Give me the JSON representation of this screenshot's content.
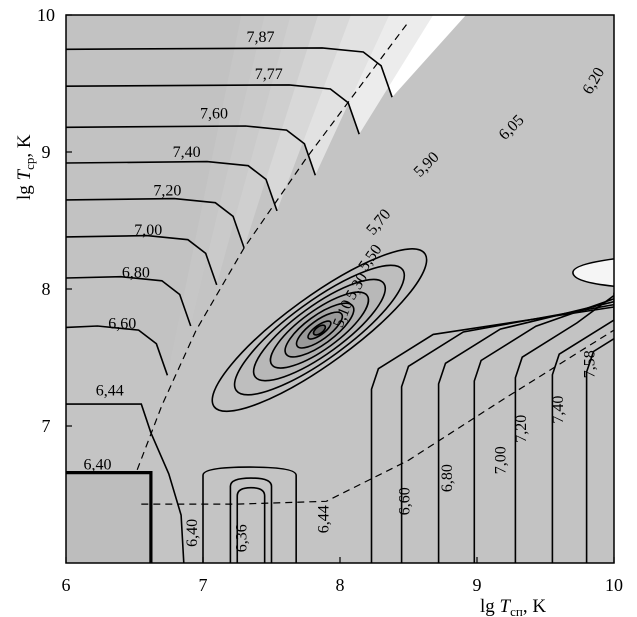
{
  "chart_data": {
    "type": "contour",
    "title": "",
    "xlabel": {
      "prefix": "lg ",
      "var": "T",
      "sub": "сп",
      "suffix": ", K"
    },
    "ylabel": {
      "prefix": "lg ",
      "var": "T",
      "sub": "ср",
      "suffix": ", K"
    },
    "xlim": [
      6,
      10
    ],
    "ylim": [
      6,
      10
    ],
    "xticks": [
      "6",
      "7",
      "8",
      "9",
      "10"
    ],
    "yticks": [
      "7",
      "8",
      "9",
      "10"
    ],
    "grid": false,
    "ridge_contours": [
      5.1,
      5.3,
      5.5,
      5.7,
      5.9,
      6.05,
      6.2
    ],
    "top_left_contours": [
      7.87,
      7.77,
      7.6,
      7.4,
      7.2,
      7.0,
      6.8,
      6.6,
      6.44,
      6.4
    ],
    "right_contours": [
      7.58,
      7.4,
      7.2,
      7.0,
      6.8,
      6.6,
      6.44
    ],
    "bottom_contours": [
      6.4,
      6.36
    ],
    "labels": [
      {
        "text": "7,87",
        "x": 7.42,
        "y": 9.84,
        "rot": 0
      },
      {
        "text": "7,77",
        "x": 7.48,
        "y": 9.57,
        "rot": 0
      },
      {
        "text": "7,60",
        "x": 7.08,
        "y": 9.28,
        "rot": 0
      },
      {
        "text": "7,40",
        "x": 6.88,
        "y": 9.0,
        "rot": 0
      },
      {
        "text": "7,20",
        "x": 6.74,
        "y": 8.72,
        "rot": 0
      },
      {
        "text": "7,00",
        "x": 6.6,
        "y": 8.43,
        "rot": 0
      },
      {
        "text": "6,80",
        "x": 6.51,
        "y": 8.12,
        "rot": 0
      },
      {
        "text": "6,60",
        "x": 6.41,
        "y": 7.75,
        "rot": 0
      },
      {
        "text": "6,44",
        "x": 6.32,
        "y": 7.26,
        "rot": 0
      },
      {
        "text": "6,40",
        "x": 6.23,
        "y": 6.72,
        "rot": 0
      },
      {
        "text": "5,10",
        "x": 8.02,
        "y": 7.82,
        "rot": -68
      },
      {
        "text": "5,30",
        "x": 8.12,
        "y": 8.02,
        "rot": -60
      },
      {
        "text": "5,50",
        "x": 8.22,
        "y": 8.23,
        "rot": -55
      },
      {
        "text": "5,70",
        "x": 8.28,
        "y": 8.49,
        "rot": -50
      },
      {
        "text": "5,90",
        "x": 8.63,
        "y": 8.91,
        "rot": -45
      },
      {
        "text": "6,05",
        "x": 9.25,
        "y": 9.18,
        "rot": -45
      },
      {
        "text": "6,20",
        "x": 9.85,
        "y": 9.52,
        "rot": -60
      },
      {
        "text": "7,58",
        "x": 9.82,
        "y": 7.45,
        "rot": -90
      },
      {
        "text": "7,40",
        "x": 9.59,
        "y": 7.12,
        "rot": -90
      },
      {
        "text": "7,20",
        "x": 9.32,
        "y": 6.98,
        "rot": -90
      },
      {
        "text": "7,00",
        "x": 9.17,
        "y": 6.75,
        "rot": -90
      },
      {
        "text": "6,80",
        "x": 8.78,
        "y": 6.62,
        "rot": -90
      },
      {
        "text": "6,60",
        "x": 8.47,
        "y": 6.45,
        "rot": -90
      },
      {
        "text": "6,44",
        "x": 7.88,
        "y": 6.32,
        "rot": -90
      },
      {
        "text": "6,40",
        "x": 6.92,
        "y": 6.22,
        "rot": -90
      },
      {
        "text": "6,36",
        "x": 7.28,
        "y": 6.18,
        "rot": -90
      }
    ],
    "ridge": {
      "x0": 7.85,
      "y0": 7.7,
      "angle_deg": 36,
      "a": [
        0.1,
        0.2,
        0.3,
        0.43,
        0.58,
        0.75,
        0.95
      ],
      "b": [
        0.035,
        0.07,
        0.105,
        0.14,
        0.175,
        0.21,
        0.245
      ]
    },
    "dashed_boundary_upper": [
      [
        6.52,
        6.68
      ],
      [
        6.7,
        7.15
      ],
      [
        6.95,
        7.7
      ],
      [
        7.3,
        8.3
      ],
      [
        7.75,
        8.95
      ],
      [
        8.2,
        9.55
      ],
      [
        8.5,
        9.95
      ]
    ],
    "dashed_boundary_lower": [
      [
        6.55,
        6.43
      ],
      [
        7.25,
        6.43
      ],
      [
        7.9,
        6.45
      ],
      [
        8.5,
        6.75
      ],
      [
        9.2,
        7.2
      ],
      [
        10.0,
        7.7
      ]
    ],
    "thick_boundary": [
      [
        6.0,
        6.66
      ],
      [
        6.62,
        6.66
      ],
      [
        6.62,
        6.0
      ]
    ]
  }
}
